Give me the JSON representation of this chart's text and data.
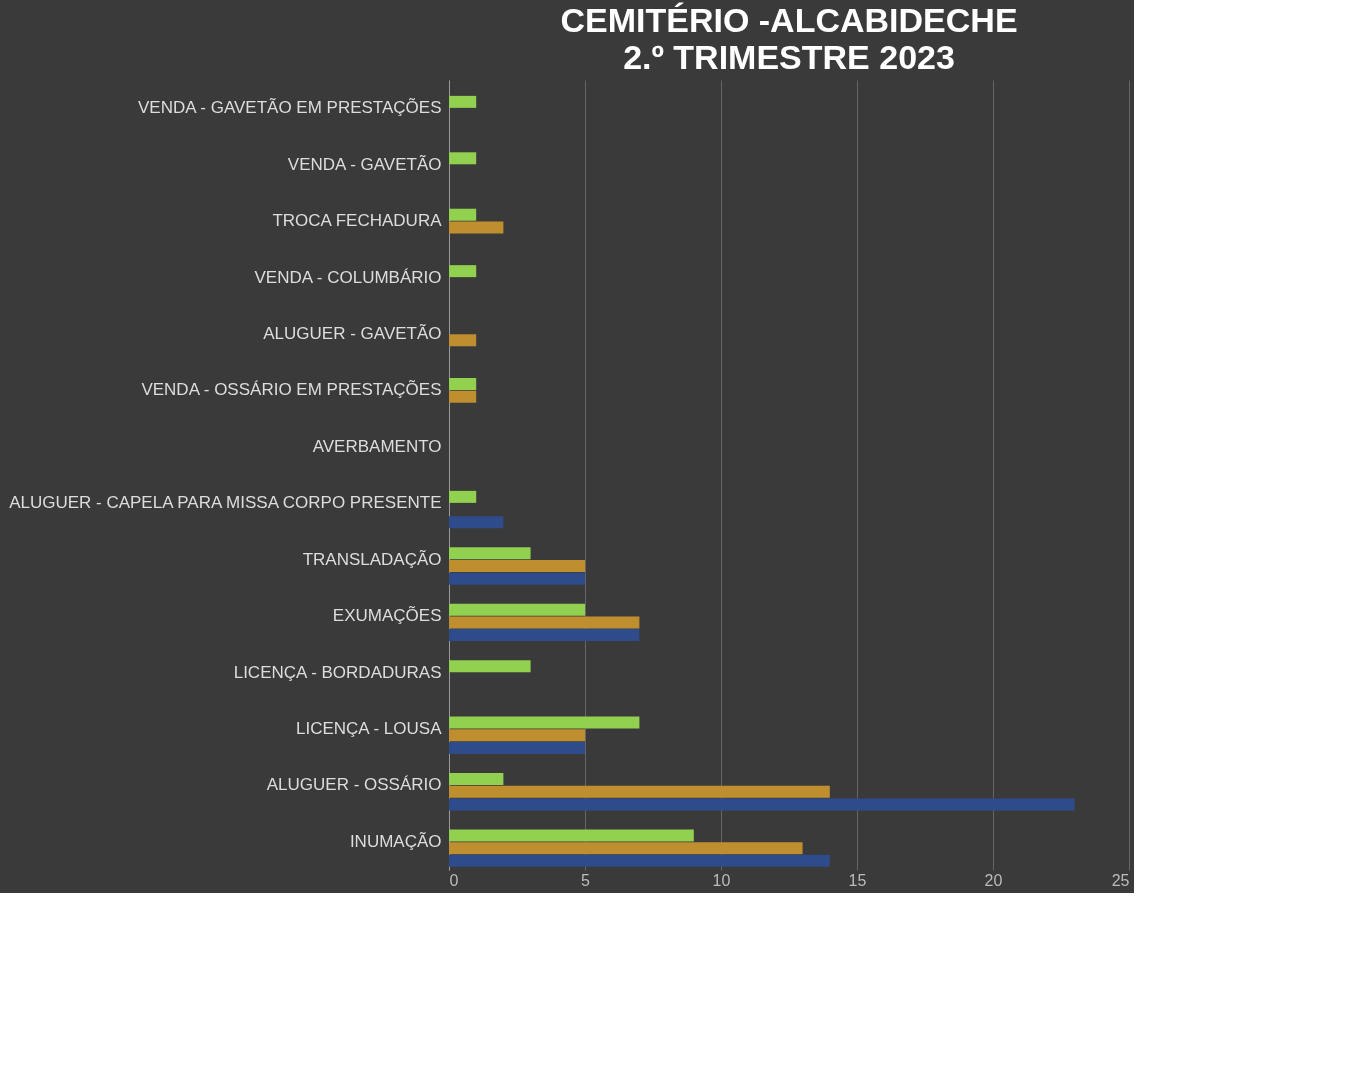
{
  "chart_data": {
    "type": "bar",
    "orientation": "horizontal",
    "title": "CEMITÉRIO  -ALCABIDECHE",
    "subtitle": "2.º TRIMESTRE  2023",
    "categories": [
      "VENDA - GAVETÃO EM PRESTAÇÕES",
      "VENDA - GAVETÃO",
      "TROCA FECHADURA",
      "VENDA - COLUMBÁRIO",
      "ALUGUER - GAVETÃO",
      "VENDA - OSSÁRIO EM PRESTAÇÕES",
      "AVERBAMENTO",
      "ALUGUER - CAPELA PARA MISSA CORPO PRESENTE",
      "TRANSLADAÇÃO",
      "EXUMAÇÕES",
      "LICENÇA - BORDADURAS",
      "LICENÇA - LOUSA",
      "ALUGUER - OSSÁRIO",
      "INUMAÇÃO"
    ],
    "series": [
      {
        "color": "#5b9bd5",
        "values": [
          null,
          null,
          null,
          null,
          null,
          null,
          null,
          null,
          null,
          null,
          null,
          null,
          null,
          null
        ]
      },
      {
        "color": "#92d050",
        "values": [
          1,
          1,
          1,
          1,
          0,
          1,
          0,
          1,
          3,
          5,
          3,
          7,
          2,
          9
        ]
      },
      {
        "color": "#bf8f2f",
        "values": [
          0,
          0,
          2,
          0,
          1,
          1,
          0,
          0,
          5,
          7,
          0,
          5,
          14,
          13
        ]
      },
      {
        "color": "#2e4c8c",
        "values": [
          0,
          0,
          0,
          0,
          0,
          0,
          0,
          2,
          5,
          7,
          0,
          5,
          23,
          14
        ]
      }
    ],
    "xlim": [
      0,
      25
    ],
    "xticks": [
      0,
      5,
      10,
      15,
      20,
      25
    ],
    "grid": "x"
  }
}
